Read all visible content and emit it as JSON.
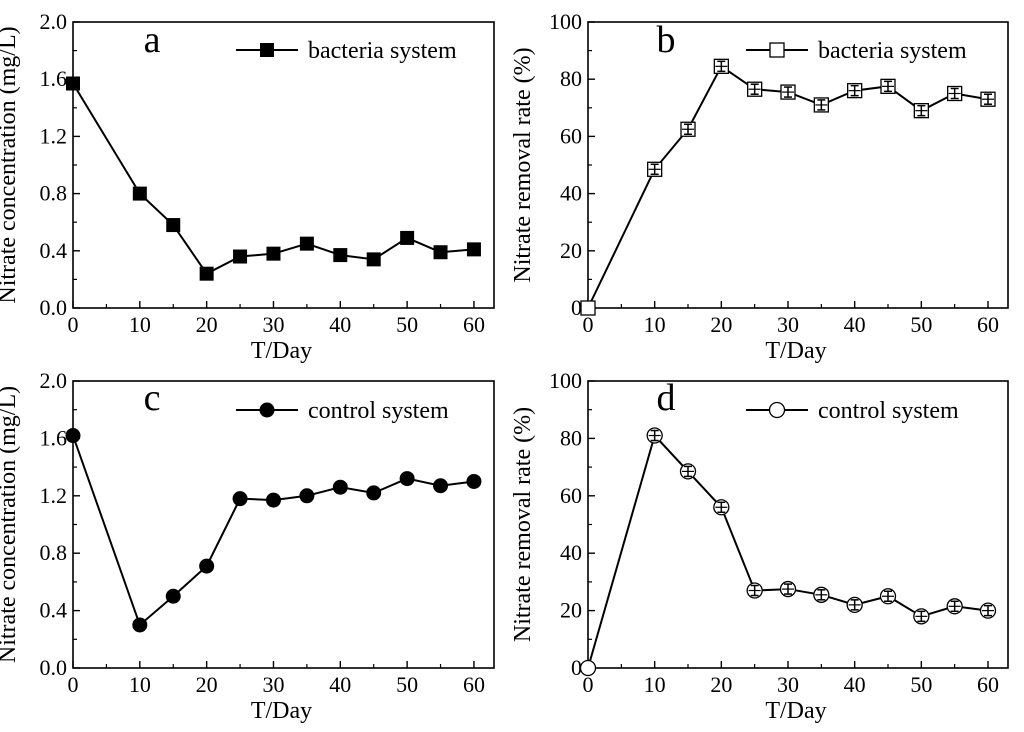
{
  "chart_data": [
    {
      "type": "line",
      "panel_letter": "a",
      "xlabel": "T/Day",
      "ylabel": "Nitrate concentration (mg/L)",
      "xlim": [
        0,
        63
      ],
      "ylim": [
        0,
        2.0
      ],
      "xticks": [
        "0",
        "10",
        "20",
        "30",
        "40",
        "50",
        "60"
      ],
      "yticks": [
        "0.0",
        "0.4",
        "0.8",
        "1.2",
        "1.6",
        "2.0"
      ],
      "legend_position": "top-right",
      "series": [
        {
          "name": "bacteria system",
          "marker": "filled-square",
          "x": [
            0,
            10,
            15,
            20,
            25,
            30,
            35,
            40,
            45,
            50,
            55,
            60
          ],
          "y": [
            1.57,
            0.8,
            0.58,
            0.24,
            0.36,
            0.38,
            0.45,
            0.37,
            0.34,
            0.49,
            0.39,
            0.41
          ]
        }
      ]
    },
    {
      "type": "line",
      "panel_letter": "b",
      "xlabel": "T/Day",
      "ylabel": "Nitrate removal rate (%)",
      "xlim": [
        0,
        63
      ],
      "ylim": [
        0,
        100
      ],
      "xticks": [
        "0",
        "10",
        "20",
        "30",
        "40",
        "50",
        "60"
      ],
      "yticks": [
        "0",
        "20",
        "40",
        "60",
        "80",
        "100"
      ],
      "legend_position": "top-right",
      "series": [
        {
          "name": "bacteria system",
          "marker": "open-square",
          "error_bars": true,
          "x": [
            0,
            10,
            15,
            20,
            25,
            30,
            35,
            40,
            45,
            50,
            55,
            60
          ],
          "y": [
            0,
            48.5,
            62.5,
            84.5,
            76.5,
            75.5,
            71.0,
            76.0,
            77.5,
            69.0,
            75.0,
            73.0
          ]
        }
      ]
    },
    {
      "type": "line",
      "panel_letter": "c",
      "xlabel": "T/Day",
      "ylabel": "Nitrate concentration (mg/L)",
      "xlim": [
        0,
        63
      ],
      "ylim": [
        0,
        2.0
      ],
      "xticks": [
        "0",
        "10",
        "20",
        "30",
        "40",
        "50",
        "60"
      ],
      "yticks": [
        "0.0",
        "0.4",
        "0.8",
        "1.2",
        "1.6",
        "2.0"
      ],
      "legend_position": "top-right",
      "series": [
        {
          "name": "control system",
          "marker": "filled-circle",
          "x": [
            0,
            10,
            15,
            20,
            25,
            30,
            35,
            40,
            45,
            50,
            55,
            60
          ],
          "y": [
            1.62,
            0.3,
            0.5,
            0.71,
            1.18,
            1.17,
            1.2,
            1.26,
            1.22,
            1.32,
            1.27,
            1.3
          ]
        }
      ]
    },
    {
      "type": "line",
      "panel_letter": "d",
      "xlabel": "T/Day",
      "ylabel": "Nitrate removal rate (%)",
      "xlim": [
        0,
        63
      ],
      "ylim": [
        0,
        100
      ],
      "xticks": [
        "0",
        "10",
        "20",
        "30",
        "40",
        "50",
        "60"
      ],
      "yticks": [
        "0",
        "20",
        "40",
        "60",
        "80",
        "100"
      ],
      "legend_position": "top-right",
      "series": [
        {
          "name": "control system",
          "marker": "open-circle",
          "error_bars": true,
          "x": [
            0,
            10,
            15,
            20,
            25,
            30,
            35,
            40,
            45,
            50,
            55,
            60
          ],
          "y": [
            0,
            81.0,
            68.5,
            56.0,
            27.0,
            27.5,
            25.5,
            22.0,
            25.0,
            18.0,
            21.5,
            20.0
          ]
        }
      ]
    }
  ]
}
